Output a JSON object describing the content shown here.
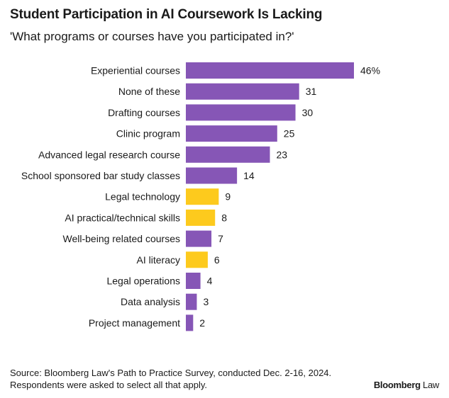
{
  "chart_data": {
    "type": "bar",
    "orientation": "horizontal",
    "title": "Student Participation in AI Coursework Is Lacking",
    "subtitle": "'What programs or courses have you participated in?'",
    "categories": [
      "Experiential courses",
      "None of these",
      "Drafting courses",
      "Clinic program",
      "Advanced legal research course",
      "School sponsored bar study classes",
      "Legal technology",
      "AI practical/technical skills",
      "Well-being related courses",
      "AI literacy",
      "Legal operations",
      "Data analysis",
      "Project management"
    ],
    "values": [
      46,
      31,
      30,
      25,
      23,
      14,
      9,
      8,
      7,
      6,
      4,
      3,
      2
    ],
    "value_labels": [
      "46%",
      "31",
      "30",
      "25",
      "23",
      "14",
      "9",
      "8",
      "7",
      "6",
      "4",
      "3",
      "2"
    ],
    "highlight": [
      false,
      false,
      false,
      false,
      false,
      false,
      true,
      true,
      false,
      true,
      false,
      false,
      false
    ],
    "colors": {
      "default": "#8656b6",
      "highlight": "#fdca1d"
    },
    "xlim": [
      0,
      46
    ],
    "grid": false,
    "legend": "none"
  },
  "footer": {
    "source_line1": "Source: Bloomberg Law's Path to Practice Survey, conducted Dec. 2-16, 2024.",
    "source_line2": "Respondents were asked to select all that apply."
  },
  "logo": {
    "text_bold": "Bloomberg",
    "text_light": " Law"
  }
}
